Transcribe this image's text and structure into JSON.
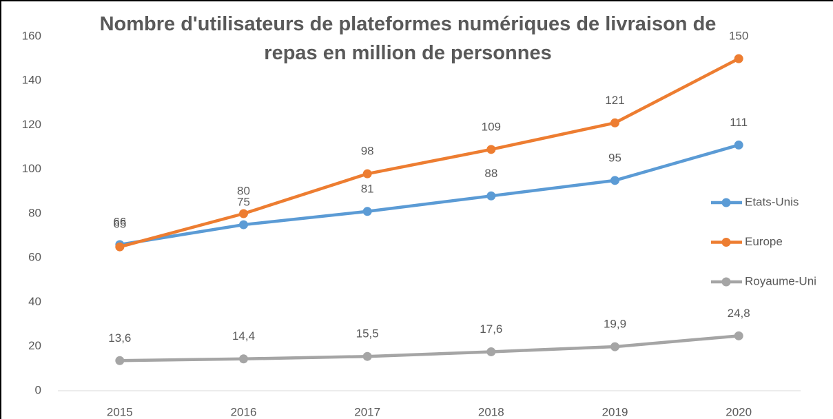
{
  "chart_data": {
    "type": "line",
    "title": "Nombre d'utilisateurs de plateformes numériques de livraison de repas en million de personnes",
    "categories": [
      "2015",
      "2016",
      "2017",
      "2018",
      "2019",
      "2020"
    ],
    "series": [
      {
        "name": "Etats-Unis",
        "color": "#5b9bd5",
        "values": [
          66,
          75,
          81,
          88,
          95,
          111
        ]
      },
      {
        "name": "Europe",
        "color": "#ed7d31",
        "values": [
          65,
          80,
          98,
          109,
          121,
          150
        ]
      },
      {
        "name": "Royaume-Uni",
        "color": "#a5a5a5",
        "values": [
          13.6,
          14.4,
          15.5,
          17.6,
          19.9,
          24.8
        ],
        "value_labels": [
          "13,6",
          "14,4",
          "15,5",
          "17,6",
          "19,9",
          "24,8"
        ]
      }
    ],
    "ylim": [
      0,
      160
    ],
    "yticks": [
      0,
      20,
      40,
      60,
      80,
      100,
      120,
      140,
      160
    ],
    "grid": false,
    "legend": "right"
  }
}
